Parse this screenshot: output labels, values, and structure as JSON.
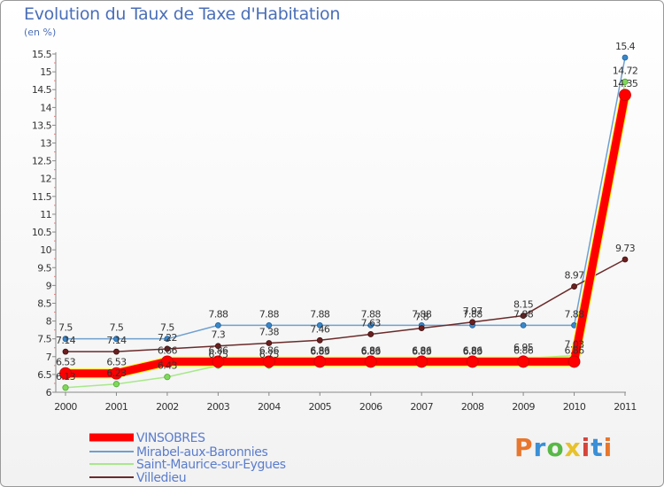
{
  "chart_data": {
    "type": "line",
    "title": "Evolution du Taux de Taxe d'Habitation",
    "subtitle": "(en %)",
    "x": [
      "2000",
      "2001",
      "2002",
      "2003",
      "2004",
      "2005",
      "2006",
      "2007",
      "2008",
      "2009",
      "2010",
      "2011"
    ],
    "ylim": [
      6,
      15.5
    ],
    "yticks": [
      "6",
      "6.5",
      "7",
      "7.5",
      "8",
      "8.5",
      "9",
      "9.5",
      "10",
      "10.5",
      "11",
      "11.5",
      "12",
      "12.5",
      "13",
      "13.5",
      "14",
      "14.5",
      "15",
      "15.5"
    ],
    "grid": false,
    "legend_position": "bottom-left",
    "series": [
      {
        "name": "VINSOBRES",
        "color": "#ff0000",
        "values": [
          6.53,
          6.53,
          6.86,
          6.86,
          6.86,
          6.86,
          6.86,
          6.86,
          6.86,
          6.86,
          6.86,
          14.35
        ],
        "labels": [
          "6.53",
          "6.53",
          "6.86",
          "6.86",
          "6.86",
          "6.86",
          "6.86",
          "6.86",
          "6.86",
          "6.86",
          "6.86",
          "14.35"
        ]
      },
      {
        "name": "Mirabel-aux-Baronnies",
        "color": "#6ea0d0",
        "values": [
          7.5,
          7.5,
          7.5,
          7.88,
          7.88,
          7.88,
          7.88,
          7.88,
          7.88,
          7.88,
          7.88,
          15.4
        ],
        "labels": [
          "7.5",
          "7.5",
          "7.5",
          "7.88",
          "7.88",
          "7.88",
          "7.88",
          "7.88",
          "7.88",
          "7.88",
          "7.88",
          "15.4"
        ]
      },
      {
        "name": "Saint-Maurice-sur-Eygues",
        "color": "#99e07a",
        "values": [
          6.13,
          6.23,
          6.43,
          6.75,
          6.75,
          6.83,
          6.83,
          6.83,
          6.83,
          6.95,
          7.03,
          14.72
        ],
        "labels": [
          "6.13",
          "6.23",
          "6.43",
          "6.75",
          "6.75",
          "6.83",
          "6.83",
          "6.83",
          "6.83",
          "6.95",
          "7.03",
          "14.72"
        ]
      },
      {
        "name": "Villedieu",
        "color": "#6b2a2a",
        "values": [
          7.14,
          7.14,
          7.22,
          7.3,
          7.38,
          7.46,
          7.63,
          7.8,
          7.97,
          8.15,
          8.97,
          9.73
        ],
        "labels": [
          "7.14",
          "7.14",
          "7.22",
          "7.3",
          "7.38",
          "7.46",
          "7.63",
          "7.8",
          "7.97",
          "8.15",
          "8.97",
          "9.73"
        ]
      }
    ]
  },
  "logo": {
    "text": "Proxiti",
    "colors": [
      "#e8762c",
      "#3a8fd6",
      "#58b847",
      "#e8c22c",
      "#d6443a",
      "#3a8fd6",
      "#e8762c"
    ]
  }
}
